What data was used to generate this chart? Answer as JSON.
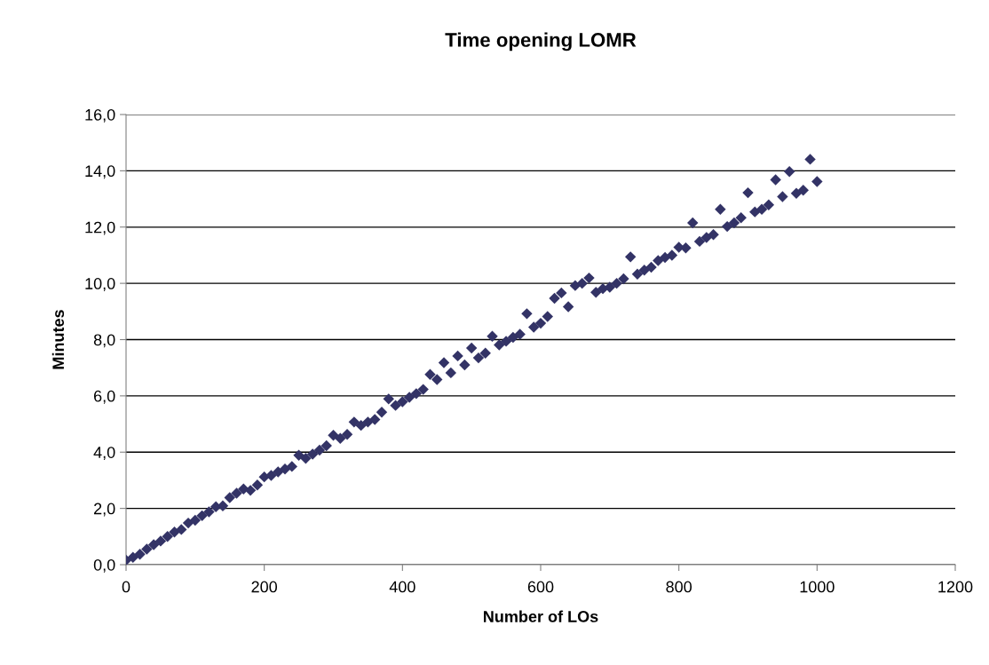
{
  "chart_data": {
    "type": "scatter",
    "title": "Time opening LOMR",
    "xlabel": "Number of LOs",
    "ylabel": "Minutes",
    "x": [
      0,
      10,
      20,
      30,
      40,
      50,
      60,
      70,
      80,
      90,
      100,
      110,
      120,
      130,
      140,
      150,
      160,
      170,
      180,
      190,
      200,
      210,
      220,
      230,
      240,
      250,
      260,
      270,
      280,
      290,
      300,
      310,
      320,
      330,
      340,
      350,
      360,
      370,
      380,
      390,
      400,
      410,
      420,
      430,
      440,
      450,
      460,
      470,
      480,
      490,
      500,
      510,
      520,
      530,
      540,
      550,
      560,
      570,
      580,
      590,
      600,
      610,
      620,
      630,
      640,
      650,
      660,
      670,
      680,
      690,
      700,
      710,
      720,
      730,
      740,
      750,
      760,
      770,
      780,
      790,
      800,
      810,
      820,
      830,
      840,
      850,
      860,
      870,
      880,
      890,
      900,
      910,
      920,
      930,
      940,
      950,
      960,
      970,
      980,
      990,
      1000
    ],
    "series": [
      {
        "color": "#333366",
        "marker": "diamond",
        "values": [
          0.16,
          0.26,
          0.37,
          0.55,
          0.71,
          0.84,
          1.0,
          1.16,
          1.25,
          1.48,
          1.58,
          1.74,
          1.88,
          2.06,
          2.09,
          2.38,
          2.54,
          2.69,
          2.64,
          2.83,
          3.12,
          3.17,
          3.3,
          3.4,
          3.49,
          3.89,
          3.78,
          3.93,
          4.07,
          4.23,
          4.6,
          4.49,
          4.63,
          5.07,
          4.95,
          5.07,
          5.16,
          5.42,
          5.89,
          5.66,
          5.79,
          5.95,
          6.08,
          6.23,
          6.76,
          6.58,
          7.18,
          6.82,
          7.42,
          7.1,
          7.7,
          7.35,
          7.52,
          8.12,
          7.81,
          7.94,
          8.08,
          8.19,
          8.92,
          8.44,
          8.58,
          8.82,
          9.47,
          9.66,
          9.17,
          9.92,
          10.0,
          10.19,
          9.68,
          9.81,
          9.86,
          10.0,
          10.16,
          10.94,
          10.33,
          10.47,
          10.57,
          10.81,
          10.92,
          11.0,
          11.28,
          11.26,
          12.15,
          11.49,
          11.63,
          11.73,
          12.63,
          12.02,
          12.15,
          12.33,
          13.22,
          12.54,
          12.63,
          12.79,
          13.68,
          13.08,
          13.97,
          13.2,
          13.31,
          14.41,
          13.62
        ]
      }
    ],
    "xlim": [
      0,
      1200
    ],
    "xticks": [
      0,
      200,
      400,
      600,
      800,
      1000,
      1200
    ],
    "ylim": [
      0,
      16
    ],
    "yticks": [
      {
        "value": 0,
        "label": "0,0"
      },
      {
        "value": 2,
        "label": "2,0"
      },
      {
        "value": 4,
        "label": "4,0"
      },
      {
        "value": 6,
        "label": "6,0"
      },
      {
        "value": 8,
        "label": "8,0"
      },
      {
        "value": 10,
        "label": "10,0"
      },
      {
        "value": 12,
        "label": "12,0"
      },
      {
        "value": 14,
        "label": "14,0"
      },
      {
        "value": 16,
        "label": "16,0"
      }
    ],
    "grid": "y",
    "legend": false
  }
}
